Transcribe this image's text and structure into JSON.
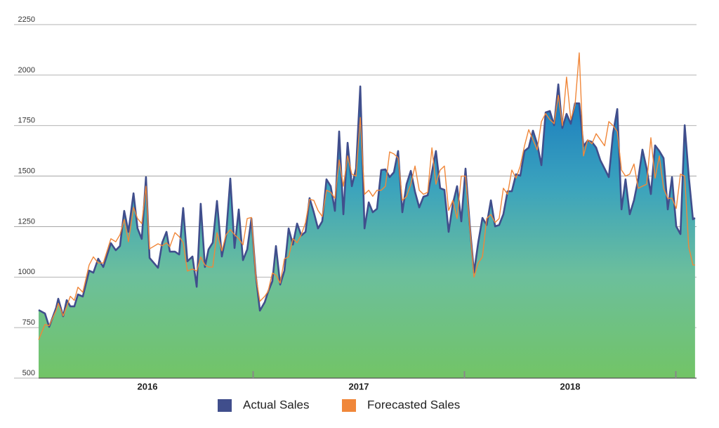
{
  "chart_data": {
    "type": "area-line",
    "x": [
      2015.485,
      2015.515,
      2015.535,
      2015.568,
      2015.578,
      2015.601,
      2015.618,
      2015.635,
      2015.654,
      2015.671,
      2015.694,
      2015.724,
      2015.744,
      2015.767,
      2015.791,
      2015.827,
      2015.85,
      2015.87,
      2015.89,
      2015.91,
      2015.934,
      2015.953,
      2015.973,
      2015.993,
      2016.01,
      2016.05,
      2016.07,
      2016.09,
      2016.106,
      2016.13,
      2016.15,
      2016.169,
      2016.189,
      2016.213,
      2016.233,
      2016.252,
      2016.272,
      2016.289,
      2016.309,
      2016.329,
      2016.352,
      2016.372,
      2016.392,
      2016.412,
      2016.432,
      2016.452,
      2016.472,
      2016.492,
      2016.512,
      2016.532,
      2016.555,
      2016.571,
      2016.591,
      2016.608,
      2016.628,
      2016.648,
      2016.668,
      2016.688,
      2016.708,
      2016.728,
      2016.748,
      2016.767,
      2016.787,
      2016.807,
      2016.827,
      2016.847,
      2016.867,
      2016.887,
      2016.907,
      2016.927,
      2016.947,
      2016.967,
      2016.987,
      2017.007,
      2017.027,
      2017.047,
      2017.066,
      2017.086,
      2017.106,
      2017.126,
      2017.146,
      2017.166,
      2017.186,
      2017.206,
      2017.226,
      2017.246,
      2017.266,
      2017.286,
      2017.306,
      2017.326,
      2017.346,
      2017.365,
      2017.385,
      2017.405,
      2017.425,
      2017.445,
      2017.465,
      2017.485,
      2017.505,
      2017.525,
      2017.545,
      2017.565,
      2017.585,
      2017.605,
      2017.625,
      2017.645,
      2017.664,
      2017.684,
      2017.704,
      2017.724,
      2017.744,
      2017.764,
      2017.784,
      2017.804,
      2017.824,
      2017.844,
      2017.864,
      2017.884,
      2017.904,
      2017.924,
      2017.944,
      2017.963,
      2017.983,
      2018.003,
      2018.023,
      2018.043,
      2018.063,
      2018.083,
      2018.103,
      2018.123,
      2018.143,
      2018.163,
      2018.183,
      2018.203,
      2018.223,
      2018.243,
      2018.262,
      2018.282,
      2018.302,
      2018.322,
      2018.342,
      2018.362,
      2018.382,
      2018.402,
      2018.422,
      2018.442,
      2018.462,
      2018.482,
      2018.502,
      2018.522,
      2018.542,
      2018.561,
      2018.581,
      2018.591
    ],
    "series": [
      {
        "name": "Actual Sales",
        "color": "#404e8c",
        "fill": true,
        "values": [
          837,
          820,
          754,
          848,
          893,
          806,
          886,
          855,
          855,
          914,
          904,
          1032,
          1022,
          1091,
          1050,
          1168,
          1133,
          1154,
          1328,
          1224,
          1415,
          1241,
          1189,
          1495,
          1095,
          1046,
          1171,
          1224,
          1126,
          1126,
          1112,
          1342,
          1078,
          1102,
          952,
          1363,
          1050,
          1137,
          1171,
          1377,
          1102,
          1206,
          1488,
          1144,
          1335,
          1084,
          1137,
          1290,
          1015,
          834,
          876,
          928,
          980,
          1154,
          963,
          1032,
          1241,
          1161,
          1265,
          1206,
          1224,
          1391,
          1321,
          1241,
          1276,
          1484,
          1450,
          1328,
          1721,
          1311,
          1665,
          1450,
          1537,
          1944,
          1241,
          1370,
          1321,
          1338,
          1530,
          1533,
          1495,
          1519,
          1624,
          1321,
          1460,
          1526,
          1422,
          1345,
          1398,
          1405,
          1519,
          1624,
          1440,
          1432,
          1224,
          1363,
          1450,
          1276,
          1537,
          1258,
          1022,
          1171,
          1293,
          1258,
          1380,
          1251,
          1258,
          1311,
          1425,
          1425,
          1509,
          1502,
          1624,
          1641,
          1725,
          1659,
          1554,
          1815,
          1822,
          1752,
          1954,
          1738,
          1808,
          1759,
          1860,
          1860,
          1648,
          1676,
          1669,
          1641,
          1578,
          1537,
          1495,
          1711,
          1832,
          1335,
          1484,
          1311,
          1380,
          1484,
          1631,
          1537,
          1411,
          1652,
          1624,
          1589,
          1335,
          1495,
          1251,
          1213,
          1752,
          1502,
          1286,
          1293
        ]
      },
      {
        "name": "Forecasted Sales",
        "color": "#f0873a",
        "fill": false,
        "values": [
          690,
          765,
          760,
          835,
          870,
          808,
          855,
          905,
          885,
          950,
          925,
          1060,
          1100,
          1070,
          1070,
          1190,
          1175,
          1210,
          1285,
          1175,
          1345,
          1290,
          1265,
          1450,
          1140,
          1165,
          1155,
          1170,
          1150,
          1220,
          1200,
          1170,
          1030,
          1040,
          1030,
          1100,
          1060,
          1050,
          1050,
          1220,
          1130,
          1210,
          1235,
          1210,
          1190,
          1160,
          1290,
          1295,
          1010,
          880,
          905,
          930,
          1020,
          1010,
          970,
          1090,
          1100,
          1190,
          1170,
          1210,
          1270,
          1385,
          1380,
          1330,
          1300,
          1430,
          1420,
          1390,
          1580,
          1450,
          1600,
          1510,
          1500,
          1790,
          1410,
          1430,
          1400,
          1430,
          1430,
          1450,
          1620,
          1610,
          1590,
          1380,
          1400,
          1460,
          1550,
          1430,
          1410,
          1420,
          1640,
          1460,
          1530,
          1550,
          1330,
          1380,
          1290,
          1500,
          1500,
          1250,
          1000,
          1070,
          1100,
          1290,
          1310,
          1270,
          1290,
          1440,
          1410,
          1530,
          1490,
          1550,
          1650,
          1730,
          1680,
          1630,
          1770,
          1810,
          1780,
          1760,
          1900,
          1750,
          1990,
          1780,
          1850,
          2110,
          1600,
          1680,
          1660,
          1710,
          1680,
          1650,
          1770,
          1750,
          1720,
          1530,
          1500,
          1510,
          1560,
          1440,
          1450,
          1460,
          1690,
          1490,
          1600,
          1440,
          1390,
          1390,
          1340,
          1510,
          1500,
          1150,
          1060,
          1060
        ]
      }
    ],
    "xlim": [
      2015.485,
      2018.598
    ],
    "xticks": [
      2016,
      2017,
      2018
    ],
    "xminorticks": [
      2016.5,
      2017.5,
      2018.5
    ],
    "ylim": [
      500,
      2250
    ],
    "yticks": [
      500,
      750,
      1000,
      1250,
      1500,
      1750,
      2000,
      2250
    ],
    "grid": true,
    "legend": "bottom"
  }
}
